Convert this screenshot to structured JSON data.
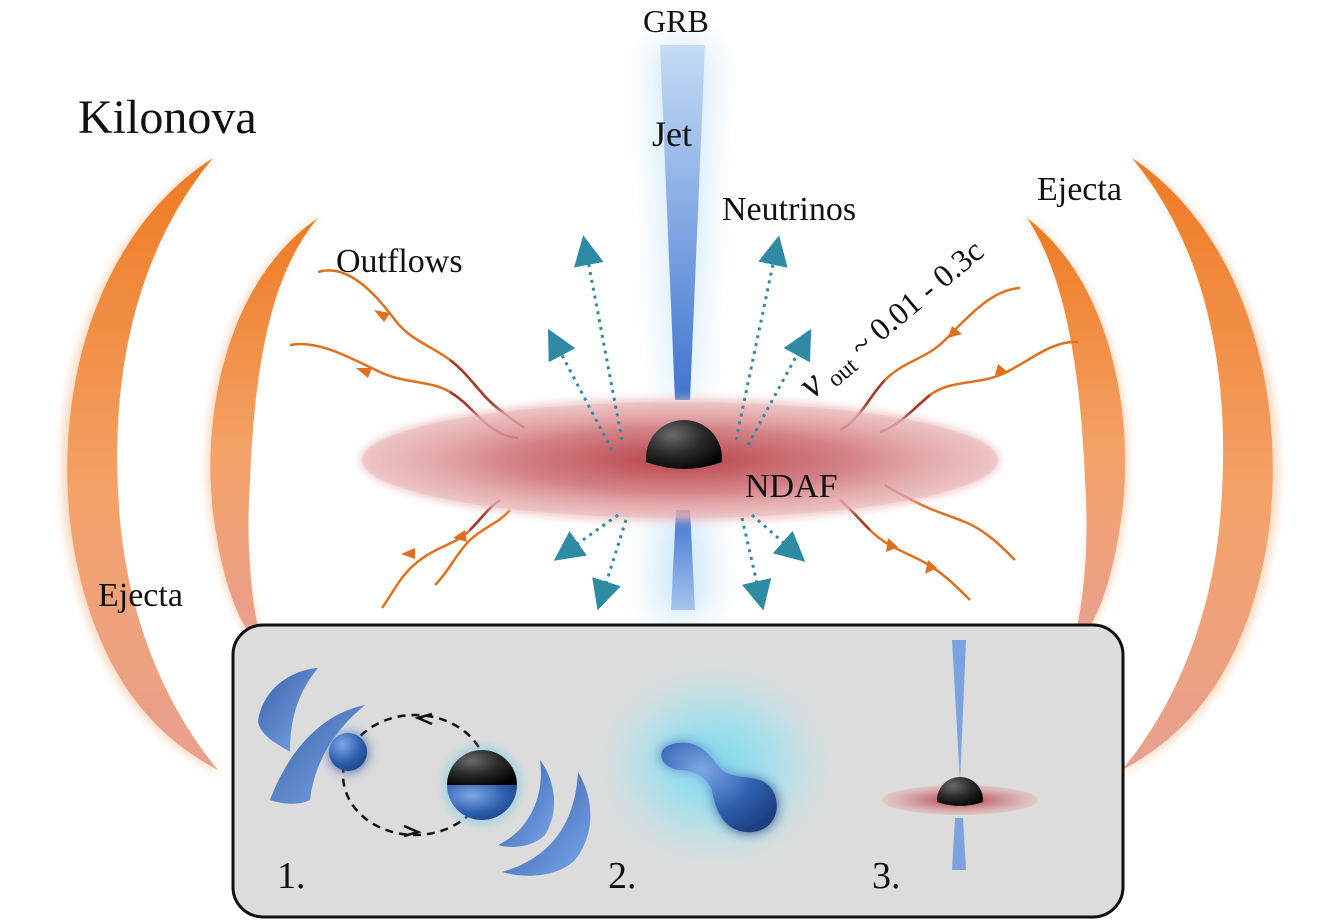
{
  "labels": {
    "grb": "GRB",
    "kilonova": "Kilonova",
    "jet": "Jet",
    "neutrinos": "Neutrinos",
    "ejecta_right": "Ejecta",
    "outflows": "Outflows",
    "velocity_symbol": "v",
    "velocity_subscript": "out",
    "velocity_range": " ~ 0.01 - 0.3c",
    "ndaf": "NDAF",
    "ejecta_left": "Ejecta"
  },
  "inset": {
    "step1": "1.",
    "step2": "2.",
    "step3": "3."
  },
  "colors": {
    "ejecta": "#f0883a",
    "disk": "#c8545a",
    "jet": "#4a7fd6",
    "neutrino_arrows": "#2f8aa3",
    "outflow": "#e07020",
    "inset_bg": "#dcdcdc"
  }
}
